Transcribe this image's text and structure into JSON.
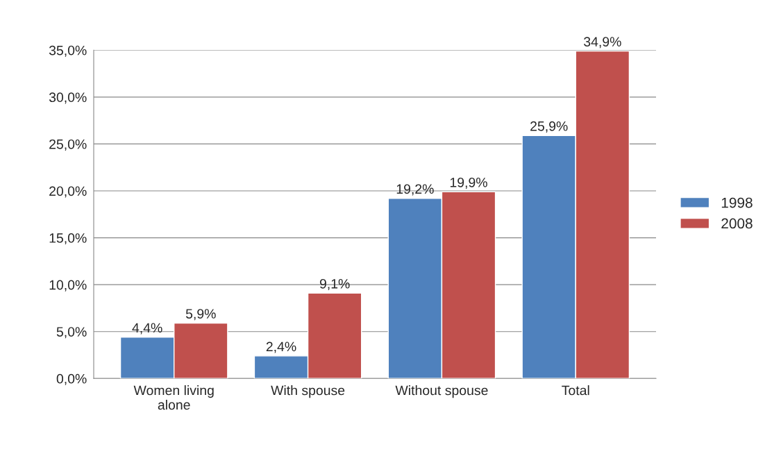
{
  "chart_data": {
    "type": "bar",
    "categories": [
      "Women living\nalone",
      "With spouse",
      "Without spouse",
      "Total"
    ],
    "series": [
      {
        "name": "1998",
        "color": "#4f81bd",
        "values": [
          4.4,
          2.4,
          19.2,
          25.9
        ],
        "value_labels": [
          "4,4%",
          "2,4%",
          "19,2%",
          "25,9%"
        ]
      },
      {
        "name": "2008",
        "color": "#c0504d",
        "values": [
          5.9,
          9.1,
          19.9,
          34.9
        ],
        "value_labels": [
          "5,9%",
          "9,1%",
          "19,9%",
          "34,9%"
        ]
      }
    ],
    "ylim": [
      0,
      35
    ],
    "yticks": [
      {
        "value": 0,
        "label": "0,0%"
      },
      {
        "value": 5,
        "label": "5,0%"
      },
      {
        "value": 10,
        "label": "10,0%"
      },
      {
        "value": 15,
        "label": "15,0%"
      },
      {
        "value": 20,
        "label": "20,0%"
      },
      {
        "value": 25,
        "label": "25,0%"
      },
      {
        "value": 30,
        "label": "30,0%"
      },
      {
        "value": 35,
        "label": "35,0%"
      }
    ],
    "grid": "y",
    "legend": "right"
  }
}
